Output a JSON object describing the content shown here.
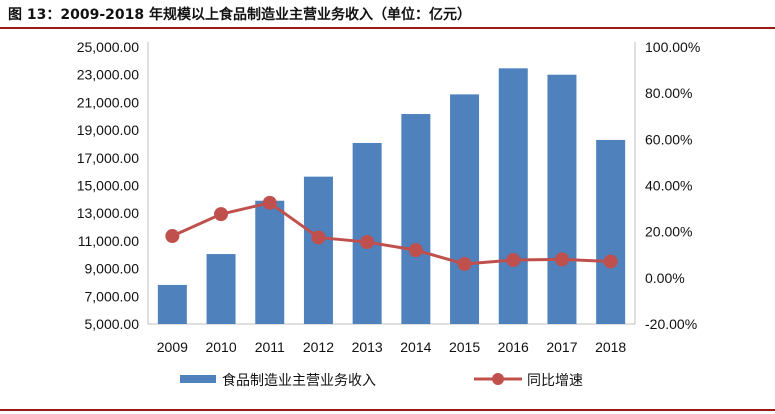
{
  "title": "图 13：2009-2018 年规模以上食品制造业主营业务收入（单位：亿元）",
  "chart_data": {
    "type": "bar+line",
    "categories": [
      "2009",
      "2010",
      "2011",
      "2012",
      "2013",
      "2014",
      "2015",
      "2016",
      "2017",
      "2018"
    ],
    "series": [
      {
        "name": "食品制造业主营业务收入",
        "type": "bar",
        "axis": "left",
        "color": "#4f81bd",
        "values": [
          7820,
          10050,
          13900,
          15640,
          18070,
          20160,
          21580,
          23460,
          23000,
          18290
        ]
      },
      {
        "name": "同比增速",
        "type": "line",
        "axis": "right",
        "color": "#c0504d",
        "values": [
          18.1,
          27.6,
          32.5,
          17.5,
          15.5,
          12.0,
          6.0,
          7.7,
          8.0,
          7.1
        ]
      }
    ],
    "left_axis": {
      "min": 5000,
      "max": 25000,
      "step": 2000,
      "tick_labels": [
        "5,000.00",
        "7,000.00",
        "9,000.00",
        "11,000.00",
        "13,000.00",
        "15,000.00",
        "17,000.00",
        "19,000.00",
        "21,000.00",
        "23,000.00",
        "25,000.00"
      ]
    },
    "right_axis": {
      "min": -20,
      "max": 100,
      "step": 20,
      "tick_labels": [
        "-20.00%",
        "0.00%",
        "20.00%",
        "40.00%",
        "60.00%",
        "80.00%",
        "100.00%"
      ]
    },
    "grid": false,
    "legend": "bottom"
  }
}
